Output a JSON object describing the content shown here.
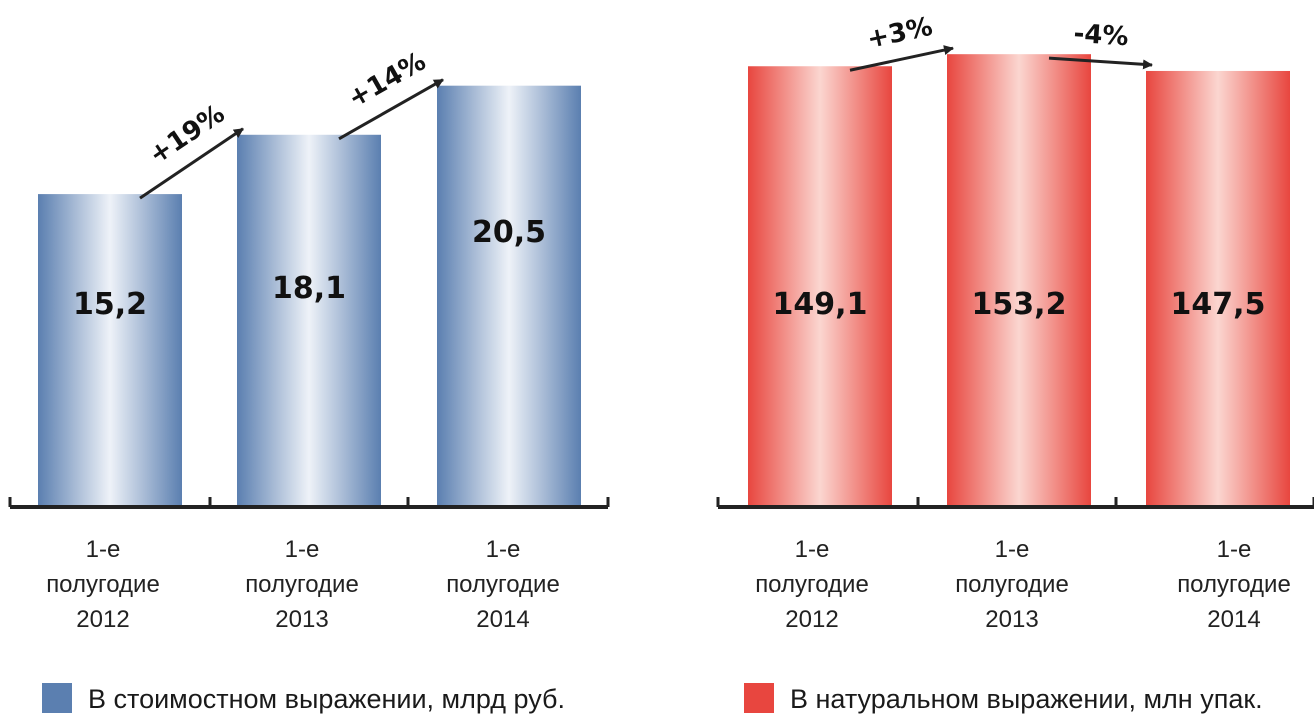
{
  "chart_data": [
    {
      "type": "bar",
      "categories": [
        [
          "1-е",
          "полугодие",
          "2012"
        ],
        [
          "1-е",
          "полугодие",
          "2013"
        ],
        [
          "1-е",
          "полугодие",
          "2014"
        ]
      ],
      "values": [
        15.2,
        18.1,
        20.5
      ],
      "value_labels": [
        "15,2",
        "18,1",
        "20,5"
      ],
      "changes": [
        "+19%",
        "+14%"
      ],
      "legend": "В стоимостном выражении, млрд руб.",
      "color": "#5b7fb0",
      "ylim": [
        0,
        22
      ]
    },
    {
      "type": "bar",
      "categories": [
        [
          "1-е",
          "полугодие",
          "2012"
        ],
        [
          "1-е",
          "полугодие",
          "2013"
        ],
        [
          "1-е",
          "полугодие",
          "2014"
        ]
      ],
      "values": [
        149.1,
        153.2,
        147.5
      ],
      "value_labels": [
        "149,1",
        "153,2",
        "147,5"
      ],
      "changes": [
        "+3%",
        "-4%"
      ],
      "legend": "В натуральном выражении, млн упак.",
      "color": "#e8463f",
      "ylim": [
        0,
        157
      ]
    }
  ]
}
